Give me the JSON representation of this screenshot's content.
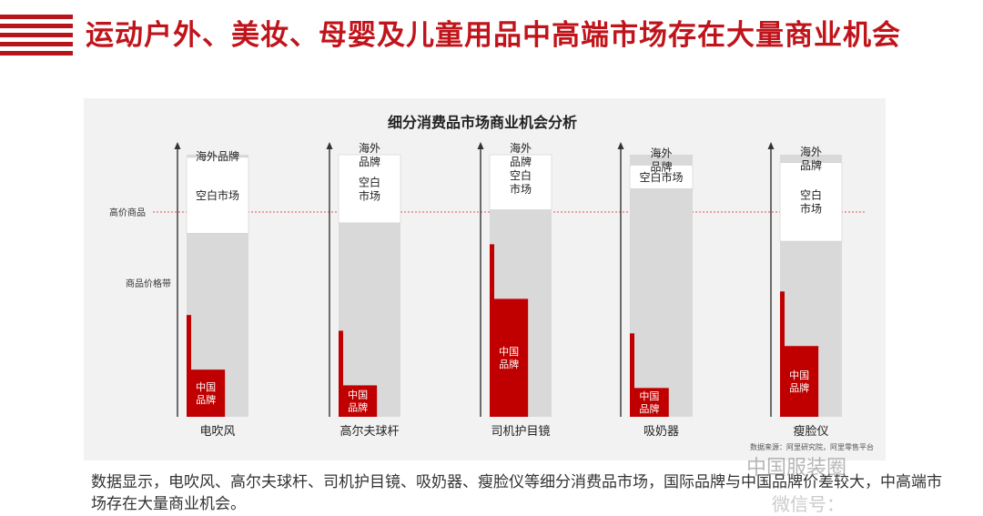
{
  "header": {
    "title": "运动户外、美妆、母婴及儿童用品中高端市场存在大量商业机会"
  },
  "colors": {
    "brand_red": "#c00000",
    "gray": "#d9d9d9",
    "panel": "#f2f2f2",
    "title_red": "#c0141b",
    "guide_line": "#e05050"
  },
  "chart_data": {
    "type": "bar",
    "title": "细分消费品市场商业机会分析",
    "y_axis_labels": [
      "高价商品",
      "商品价格带"
    ],
    "categories": [
      "电吹风",
      "高尔夫球杆",
      "司机护目镜",
      "吸奶器",
      "瘦脸仪"
    ],
    "segments": [
      {
        "name": "海外品牌",
        "values": [
          0.7,
          0.74,
          0.79,
          0.87,
          0.67
        ]
      },
      {
        "name": "空白市场",
        "values": [
          0.29,
          0.3,
          0.24,
          0.09,
          0.3
        ]
      },
      {
        "name": "中国品牌",
        "values": [
          0.18,
          0.12,
          0.45,
          0.11,
          0.27
        ]
      }
    ],
    "segment_labels": [
      {
        "overseas": "海外品牌",
        "blank": "空白市场",
        "china": "中国品牌"
      },
      {
        "overseas": "海外品牌",
        "blank": "空白市场",
        "china": "中国品牌"
      },
      {
        "overseas": "海外品牌",
        "blank": "空白市场",
        "china": "中国品牌"
      },
      {
        "overseas": "海外品牌",
        "blank": "空白市场",
        "china": "中国品牌"
      },
      {
        "overseas": "海外品牌",
        "blank": "空白市场",
        "china": "中国品牌"
      }
    ],
    "source": "数据来源：阿里研究院，阿里零售平台"
  },
  "caption": "数据显示，电吹风、高尔夫球杆、司机护目镜、吸奶器、瘦脸仪等细分消费品市场，国际品牌与中国品牌价差较大，中高端市场存在大量商业机会。",
  "watermark": {
    "main": "中国服装圈",
    "sub": "微信号："
  }
}
